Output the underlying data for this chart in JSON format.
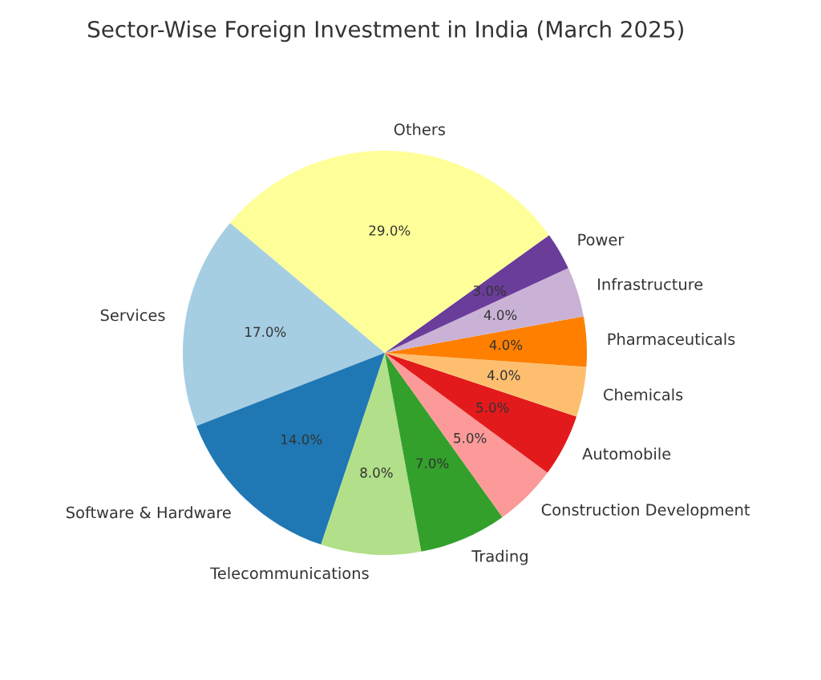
{
  "chart_data": {
    "type": "pie",
    "title": "Sector-Wise Foreign Investment in India (March 2025)",
    "categories": [
      "Services",
      "Software & Hardware",
      "Telecommunications",
      "Trading",
      "Construction Development",
      "Automobile",
      "Chemicals",
      "Pharmaceuticals",
      "Infrastructure",
      "Power",
      "Others"
    ],
    "values": [
      17,
      14,
      8,
      7,
      5,
      5,
      4,
      4,
      4,
      3,
      29
    ],
    "colors": [
      "#a6cee3",
      "#1f78b4",
      "#b2df8a",
      "#33a02c",
      "#fb9a99",
      "#e31a1c",
      "#fdbf6f",
      "#ff7f00",
      "#cab2d6",
      "#6a3d9a",
      "#ffff99"
    ],
    "value_labels": [
      "17.0%",
      "14.0%",
      "8.0%",
      "7.0%",
      "5.0%",
      "5.0%",
      "4.0%",
      "4.0%",
      "4.0%",
      "3.0%",
      "29.0%"
    ],
    "legend": false
  }
}
